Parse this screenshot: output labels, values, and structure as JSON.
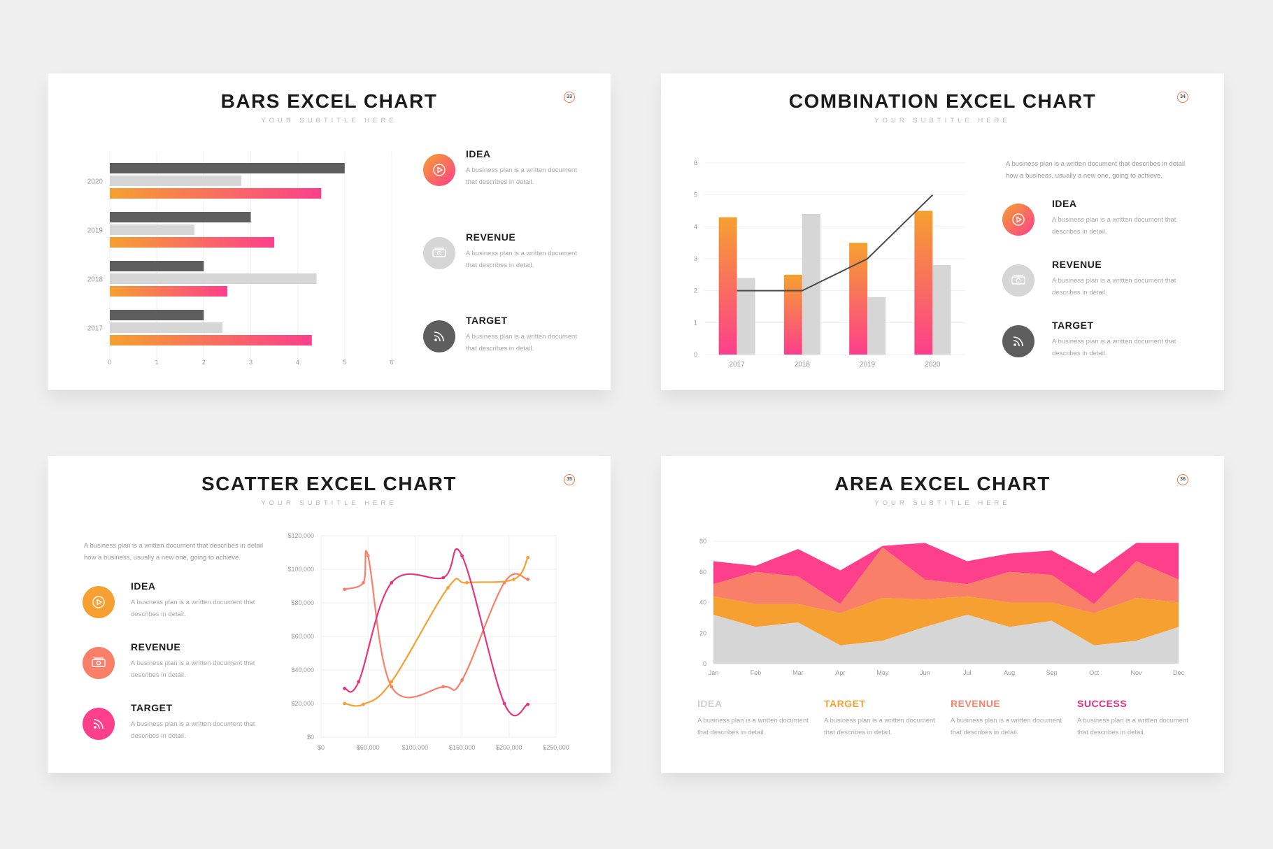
{
  "subtitle": "YOUR SUBTITLE HERE",
  "colors": {
    "orange": "#f5a030",
    "pink": "#fd3f8c",
    "dark_gray": "#5e5e5e",
    "light_gray": "#d6d6d6",
    "salmon": "#f97f68",
    "magenta": "#e6357e"
  },
  "slides": {
    "bars": {
      "title": "BARS EXCEL CHART",
      "page": "33",
      "legend": [
        {
          "title": "IDEA",
          "desc": "A business plan is a written document that describes in detail.",
          "icon": "play-icon"
        },
        {
          "title": "REVENUE",
          "desc": "A business plan is a written document that describes in detail.",
          "icon": "money-icon"
        },
        {
          "title": "TARGET",
          "desc": "A business plan is a written document that describes in detail.",
          "icon": "rss-icon"
        }
      ]
    },
    "combo": {
      "title": "COMBINATION EXCEL CHART",
      "page": "34",
      "desc": "A business plan is a written document that describes in detail how a business, usually a new one, going to achieve.",
      "legend": [
        {
          "title": "IDEA",
          "desc": "A business plan is a written document that describes in detail.",
          "icon": "play-icon"
        },
        {
          "title": "REVENUE",
          "desc": "A business plan is a written document that describes in detail.",
          "icon": "money-icon"
        },
        {
          "title": "TARGET",
          "desc": "A business plan is a written document that describes in detail.",
          "icon": "rss-icon"
        }
      ]
    },
    "scatter": {
      "title": "SCATTER EXCEL CHART",
      "page": "35",
      "desc": "A business plan is a written document that describes in detail how a business, usually a new one, going to achieve.",
      "legend": [
        {
          "title": "IDEA",
          "desc": "A business plan is a written document that describes in detail.",
          "icon": "play-icon"
        },
        {
          "title": "REVENUE",
          "desc": "A business plan is a written document that describes in detail.",
          "icon": "money-icon"
        },
        {
          "title": "TARGET",
          "desc": "A business plan is a written document that describes in detail.",
          "icon": "rss-icon"
        }
      ]
    },
    "area": {
      "title": "AREA EXCEL CHART",
      "page": "36",
      "legend": [
        {
          "title": "IDEA",
          "desc": "A business plan is a written document that describes in detail."
        },
        {
          "title": "TARGET",
          "desc": "A business plan is a written document that describes in detail."
        },
        {
          "title": "REVENUE",
          "desc": "A business plan is a written document that describes in detail."
        },
        {
          "title": "SUCCESS",
          "desc": "A business plan is a written document that describes in detail."
        }
      ]
    }
  },
  "chart_data": [
    {
      "type": "bar",
      "orientation": "horizontal",
      "categories": [
        "2020",
        "2019",
        "2018",
        "2017"
      ],
      "series": [
        {
          "values": [
            5.0,
            3.0,
            2.0,
            2.0
          ]
        },
        {
          "values": [
            2.8,
            1.8,
            4.4,
            2.4
          ]
        },
        {
          "values": [
            4.5,
            3.5,
            2.5,
            4.3
          ]
        }
      ],
      "xlim": [
        0,
        6
      ],
      "xticks": [
        "0",
        "1",
        "2",
        "3",
        "4",
        "5",
        "6"
      ],
      "grid": true
    },
    {
      "type": "bar",
      "combination": "bar + line",
      "categories": [
        "2017",
        "2018",
        "2019",
        "2020"
      ],
      "series": [
        {
          "values": [
            4.3,
            2.5,
            3.5,
            4.5
          ]
        },
        {
          "values": [
            2.4,
            4.4,
            1.8,
            2.8
          ]
        },
        {
          "type": "line",
          "values": [
            2.0,
            2.0,
            3.0,
            5.0
          ]
        }
      ],
      "ylim": [
        0,
        6
      ],
      "yticks": [
        "0",
        "1",
        "2",
        "3",
        "4",
        "5",
        "6"
      ],
      "grid": true
    },
    {
      "type": "scatter",
      "style": "smooth lines with markers",
      "xlim": [
        0,
        250000
      ],
      "ylim": [
        0,
        120000
      ],
      "xticks": [
        "$0",
        "$50,000",
        "$100,000",
        "$150,000",
        "$200,000",
        "$250,000"
      ],
      "yticks": [
        "$0",
        "$20,000",
        "$40,000",
        "$60,000",
        "$80,000",
        "$100,000",
        "$120,000"
      ],
      "series": [
        {
          "x": [
            25000,
            45000,
            50000,
            75000,
            130000,
            150000,
            195000,
            220000
          ],
          "y": [
            88000,
            92000,
            108000,
            30000,
            30000,
            34000,
            92000,
            94000
          ]
        },
        {
          "x": [
            25000,
            45000,
            75000,
            135000,
            155000,
            205000,
            220000
          ],
          "y": [
            20000,
            19500,
            33000,
            89000,
            92000,
            94000,
            107000
          ]
        },
        {
          "x": [
            25000,
            40000,
            75000,
            130000,
            150000,
            195000,
            220000
          ],
          "y": [
            29000,
            33000,
            92000,
            95000,
            108000,
            20000,
            19500
          ]
        }
      ],
      "grid": true
    },
    {
      "type": "area",
      "stacked": true,
      "categories": [
        "Jan",
        "Feb",
        "Mar",
        "Apr",
        "May",
        "Jun",
        "Jul",
        "Aug",
        "Sep",
        "Oct",
        "Nov",
        "Dec"
      ],
      "series": [
        {
          "name": "IDEA",
          "values": [
            32,
            24,
            27,
            12,
            15,
            24,
            32,
            24,
            28,
            12,
            15,
            24
          ]
        },
        {
          "name": "TARGET",
          "values": [
            12,
            15,
            12,
            21,
            28,
            18,
            12,
            16,
            12,
            21,
            28,
            16
          ]
        },
        {
          "name": "REVENUE",
          "values": [
            8,
            21,
            18,
            6,
            33,
            13,
            8,
            20,
            18,
            6,
            24,
            15
          ]
        },
        {
          "name": "SUCCESS",
          "values": [
            15,
            4,
            18,
            22,
            1,
            24,
            15,
            12,
            16,
            20,
            12,
            24
          ]
        }
      ],
      "ylim": [
        0,
        80
      ],
      "yticks": [
        "0",
        "20",
        "40",
        "60",
        "80"
      ],
      "grid": true
    }
  ]
}
